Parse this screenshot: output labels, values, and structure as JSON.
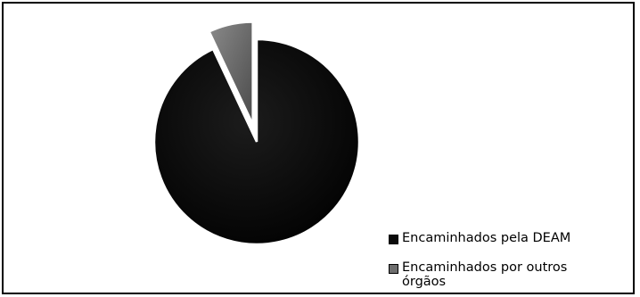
{
  "chart_data": {
    "type": "pie",
    "title": "",
    "slices": [
      {
        "label": "Encaminhados pela DEAM",
        "value": 93,
        "color": "#0a0a0a",
        "exploded": false
      },
      {
        "label": "Encaminhados por outros órgãos",
        "value": 7,
        "color": "#6e6e6e",
        "exploded": true
      }
    ],
    "legend_position": "bottom-right"
  }
}
